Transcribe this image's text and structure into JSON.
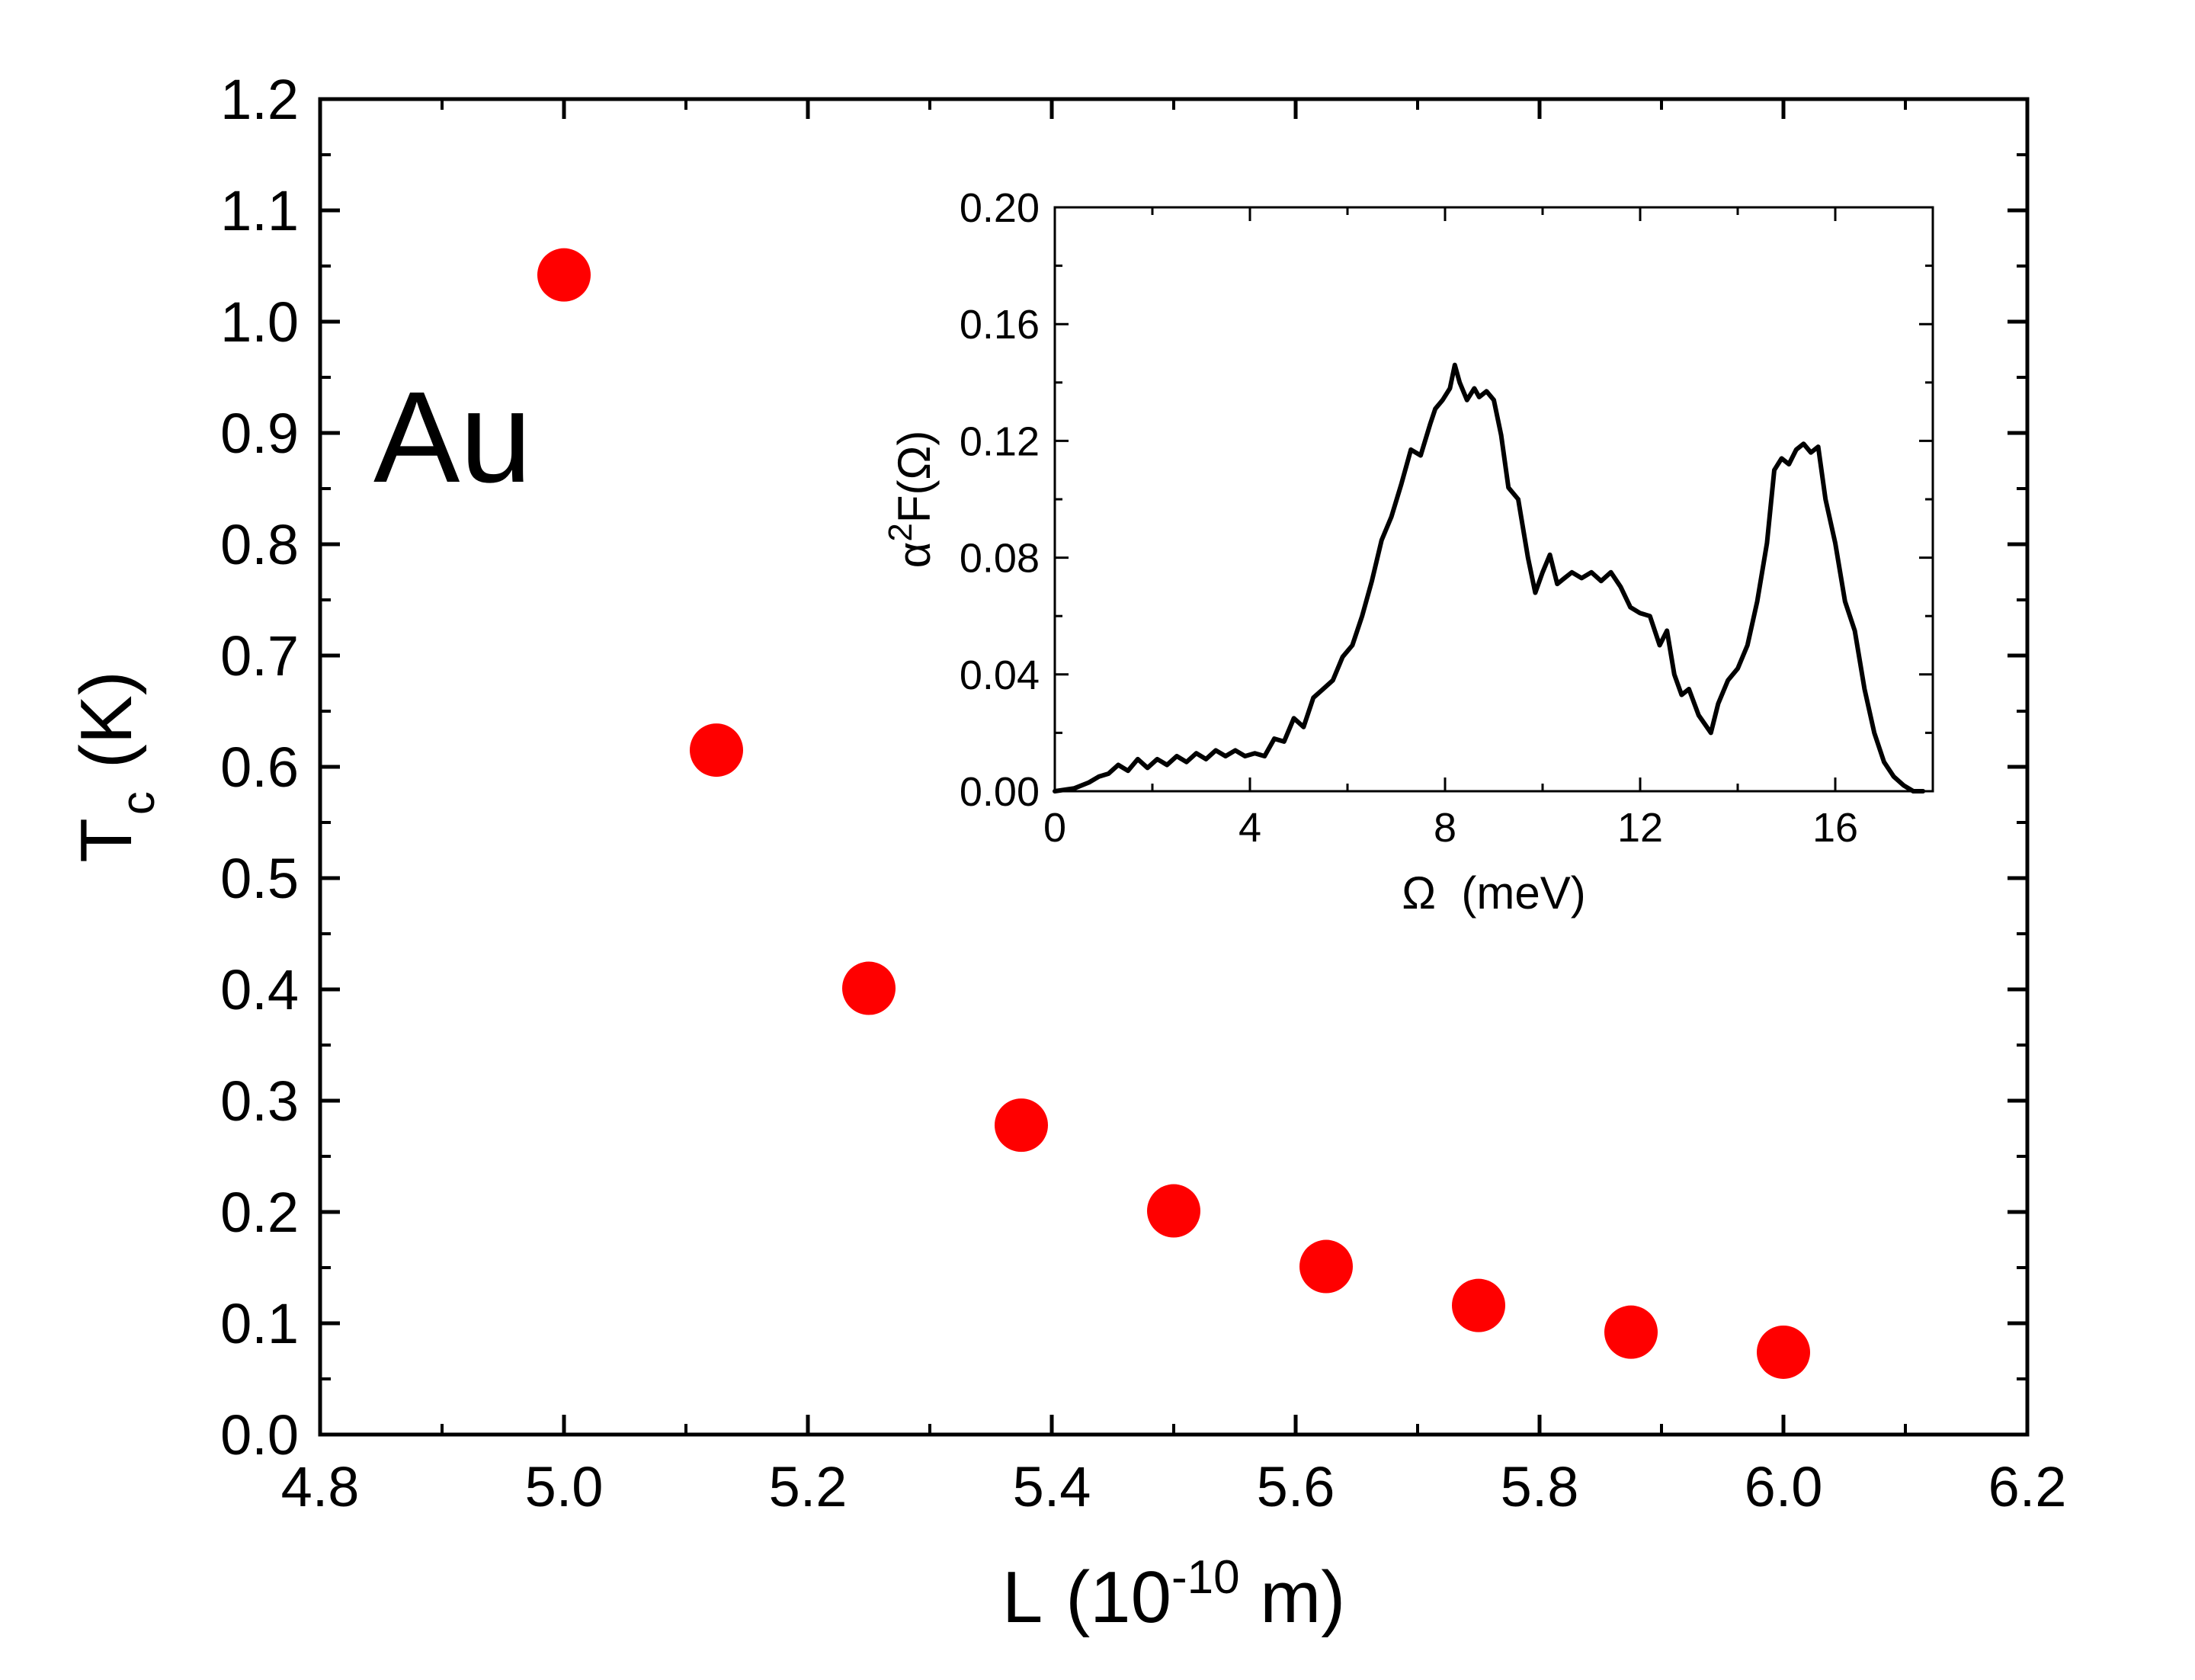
{
  "chart_data": [
    {
      "type": "scatter",
      "annotation": "Au",
      "xlabel": "L",
      "xlabel_units": {
        "prefix": "(10",
        "exponent": "-10",
        "suffix": " m)"
      },
      "ylabel": {
        "main": "T",
        "subscript": "c",
        "units": "(K)"
      },
      "xlim": [
        4.8,
        6.2
      ],
      "ylim": [
        0.0,
        1.2
      ],
      "xticks": [
        "4.8",
        "5.0",
        "5.2",
        "5.4",
        "5.6",
        "5.8",
        "6.0",
        "6.2"
      ],
      "yticks": [
        "0.0",
        "0.1",
        "0.2",
        "0.3",
        "0.4",
        "0.5",
        "0.6",
        "0.7",
        "0.8",
        "0.9",
        "1.0",
        "1.1",
        "1.2"
      ],
      "marker_color": "#ff0000",
      "grid": false,
      "points": [
        {
          "x": 5.0,
          "y": 1.042
        },
        {
          "x": 5.125,
          "y": 0.615
        },
        {
          "x": 5.25,
          "y": 0.401
        },
        {
          "x": 5.375,
          "y": 0.278
        },
        {
          "x": 5.5,
          "y": 0.201
        },
        {
          "x": 5.625,
          "y": 0.151
        },
        {
          "x": 5.75,
          "y": 0.116
        },
        {
          "x": 5.875,
          "y": 0.092
        },
        {
          "x": 6.0,
          "y": 0.074
        }
      ]
    },
    {
      "type": "line",
      "placement": "inset-top-right",
      "xlabel": "Ω  (meV)",
      "ylabel": {
        "prefix": "α",
        "superscript": "2",
        "suffix": "F(Ω)"
      },
      "xlim": [
        0,
        18
      ],
      "ylim": [
        0.0,
        0.2
      ],
      "xticks": [
        "0",
        "4",
        "8",
        "12",
        "16"
      ],
      "yticks": [
        "0.00",
        "0.04",
        "0.08",
        "0.12",
        "0.16",
        "0.20"
      ],
      "line_color": "#000000",
      "grid": false,
      "x": [
        0,
        0.4,
        0.7,
        0.9,
        1.1,
        1.3,
        1.5,
        1.7,
        1.9,
        2.1,
        2.3,
        2.5,
        2.7,
        2.9,
        3.1,
        3.3,
        3.5,
        3.7,
        3.9,
        4.1,
        4.3,
        4.5,
        4.7,
        4.9,
        5.1,
        5.3,
        5.5,
        5.7,
        5.9,
        6.1,
        6.3,
        6.5,
        6.7,
        6.9,
        7.1,
        7.3,
        7.5,
        7.7,
        7.8,
        7.95,
        8.1,
        8.2,
        8.3,
        8.45,
        8.6,
        8.7,
        8.85,
        9.0,
        9.15,
        9.3,
        9.5,
        9.7,
        9.85,
        10.0,
        10.15,
        10.3,
        10.45,
        10.6,
        10.8,
        11.0,
        11.2,
        11.4,
        11.6,
        11.8,
        12.0,
        12.2,
        12.4,
        12.55,
        12.7,
        12.85,
        13.0,
        13.2,
        13.45,
        13.6,
        13.8,
        14.0,
        14.2,
        14.4,
        14.6,
        14.75,
        14.9,
        15.05,
        15.2,
        15.35,
        15.5,
        15.65,
        15.8,
        16.0,
        16.2,
        16.4,
        16.6,
        16.8,
        17.0,
        17.2,
        17.4,
        17.6,
        17.8
      ],
      "y": [
        0.0,
        0.001,
        0.003,
        0.005,
        0.006,
        0.009,
        0.007,
        0.011,
        0.008,
        0.011,
        0.009,
        0.012,
        0.01,
        0.013,
        0.011,
        0.014,
        0.012,
        0.014,
        0.012,
        0.013,
        0.012,
        0.018,
        0.017,
        0.025,
        0.022,
        0.032,
        0.035,
        0.038,
        0.046,
        0.05,
        0.06,
        0.072,
        0.086,
        0.094,
        0.105,
        0.117,
        0.115,
        0.126,
        0.131,
        0.134,
        0.138,
        0.146,
        0.14,
        0.134,
        0.138,
        0.135,
        0.137,
        0.134,
        0.122,
        0.104,
        0.1,
        0.08,
        0.068,
        0.075,
        0.081,
        0.071,
        0.073,
        0.075,
        0.073,
        0.075,
        0.072,
        0.075,
        0.07,
        0.063,
        0.061,
        0.06,
        0.05,
        0.055,
        0.04,
        0.033,
        0.035,
        0.026,
        0.02,
        0.03,
        0.038,
        0.042,
        0.05,
        0.065,
        0.085,
        0.11,
        0.114,
        0.112,
        0.117,
        0.119,
        0.116,
        0.118,
        0.1,
        0.085,
        0.065,
        0.055,
        0.035,
        0.02,
        0.01,
        0.005,
        0.002,
        0.0,
        0.0
      ]
    }
  ]
}
